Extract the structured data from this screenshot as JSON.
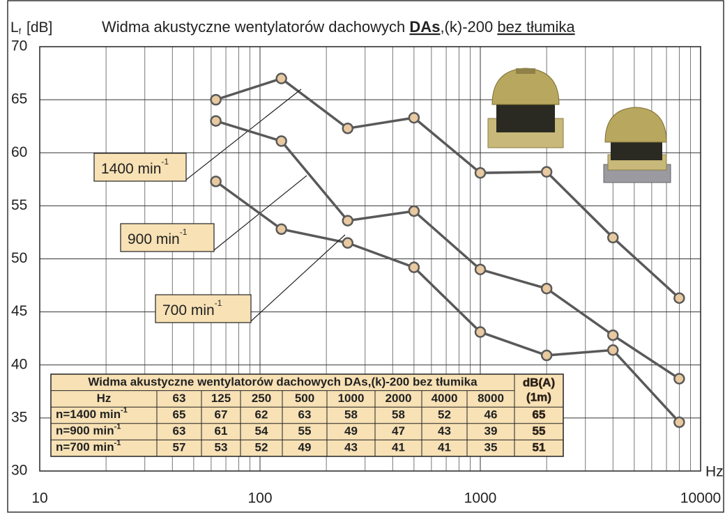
{
  "chart_data": {
    "type": "line",
    "title_parts": [
      "Widma akustyczne wentylatorów dachowych ",
      "DAs",
      ",(k)-200 ",
      "bez tłumika"
    ],
    "ylabel_symbol": "L",
    "ylabel_subscript": "f",
    "ylabel_unit": "[dB]",
    "xlabel": "Hz",
    "x": [
      63,
      125,
      250,
      500,
      1000,
      2000,
      4000,
      8000
    ],
    "xscale": "log",
    "xlim": [
      10,
      10000
    ],
    "xticks": [
      10,
      100,
      1000,
      10000
    ],
    "ylim": [
      30,
      70
    ],
    "yticks": [
      30,
      35,
      40,
      45,
      50,
      55,
      60,
      65,
      70
    ],
    "grid": true,
    "minor_grid": true,
    "marker_color": "#e8c9a0",
    "series": [
      {
        "name": "1400 min",
        "name_sup": "-1",
        "color": "#595959",
        "values": [
          65,
          67,
          62.3,
          63.3,
          58.1,
          58.2,
          52,
          46.3
        ]
      },
      {
        "name": "900 min",
        "name_sup": "-1",
        "color": "#595959",
        "values": [
          63,
          61.1,
          53.6,
          54.5,
          49,
          47.2,
          42.8,
          38.7
        ]
      },
      {
        "name": "700 min",
        "name_sup": "-1",
        "color": "#595959",
        "values": [
          57.3,
          52.8,
          51.5,
          49.2,
          43.1,
          40.9,
          41.4,
          34.6
        ]
      }
    ]
  },
  "table": {
    "title": "Widma akustyczne wentylatorów dachowych DAs,(k)-200 bez tłumika",
    "header_label": "Hz",
    "header": [
      63,
      125,
      250,
      500,
      1000,
      2000,
      4000,
      8000
    ],
    "total_header": [
      "dB(A)",
      "(1m)"
    ],
    "rows": [
      {
        "label": "n=1400 min",
        "label_sup": "-1",
        "values": [
          65,
          67,
          62,
          63,
          58,
          58,
          52,
          46
        ],
        "total": 65
      },
      {
        "label": "n=900 min",
        "label_sup": "-1",
        "values": [
          63,
          61,
          54,
          55,
          49,
          47,
          43,
          39
        ],
        "total": 55
      },
      {
        "label": "n=700 min",
        "label_sup": "-1",
        "values": [
          57,
          53,
          52,
          49,
          43,
          41,
          41,
          35
        ],
        "total": 51
      }
    ]
  }
}
